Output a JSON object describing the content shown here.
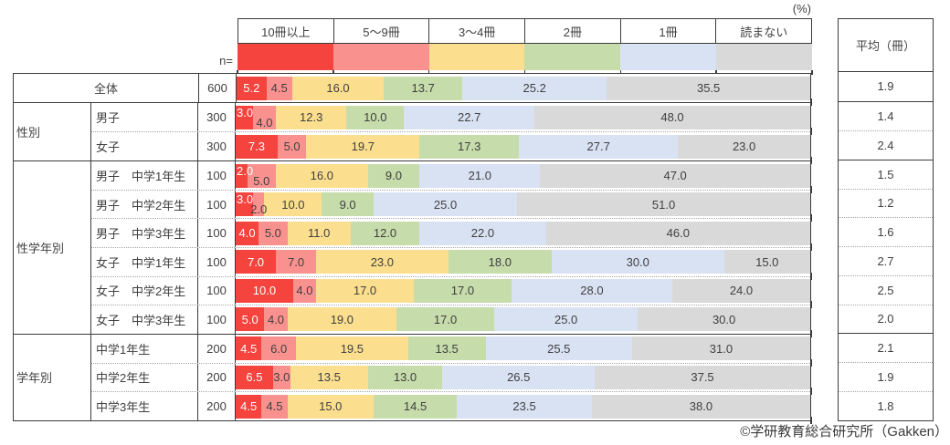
{
  "percent_label": "(%)",
  "n_label": "n=",
  "average_header": "平均（冊）",
  "footer": "©学研教育総合研究所（Gakken）",
  "colors": {
    "border": "#3b3b3b",
    "text": "#404040",
    "dotted_divider": "#a6a6a6"
  },
  "chart_data": {
    "type": "bar",
    "stacked": true,
    "orientation": "horizontal",
    "unit": "%",
    "xlim": [
      0,
      100
    ],
    "series_names": [
      "10冊以上",
      "5〜9冊",
      "3〜4冊",
      "2冊",
      "1冊",
      "読まない"
    ],
    "series_colors": [
      "#f5433e",
      "#f9918f",
      "#fbdf8e",
      "#c6dcab",
      "#d9e2f3",
      "#d9d9d9"
    ],
    "average_label": "平均（冊）",
    "groups": [
      {
        "label": "",
        "rows": [
          {
            "category": "全体",
            "n": 600,
            "values": [
              5.2,
              4.5,
              16.0,
              13.7,
              25.2,
              35.5
            ],
            "average": 1.9
          }
        ]
      },
      {
        "label": "性別",
        "rows": [
          {
            "category": "男子",
            "n": 300,
            "values": [
              3.0,
              4.0,
              12.3,
              10.0,
              22.7,
              48.0
            ],
            "average": 1.4
          },
          {
            "category": "女子",
            "n": 300,
            "values": [
              7.3,
              5.0,
              19.7,
              17.3,
              27.7,
              23.0
            ],
            "average": 2.4
          }
        ]
      },
      {
        "label": "性学年別",
        "rows": [
          {
            "category": "男子　中学1年生",
            "n": 100,
            "values": [
              2.0,
              5.0,
              16.0,
              9.0,
              21.0,
              47.0
            ],
            "average": 1.5
          },
          {
            "category": "男子　中学2年生",
            "n": 100,
            "values": [
              3.0,
              2.0,
              10.0,
              9.0,
              25.0,
              51.0
            ],
            "average": 1.2
          },
          {
            "category": "男子　中学3年生",
            "n": 100,
            "values": [
              4.0,
              5.0,
              11.0,
              12.0,
              22.0,
              46.0
            ],
            "average": 1.6
          },
          {
            "category": "女子　中学1年生",
            "n": 100,
            "values": [
              7.0,
              7.0,
              23.0,
              18.0,
              30.0,
              15.0
            ],
            "average": 2.7
          },
          {
            "category": "女子　中学2年生",
            "n": 100,
            "values": [
              10.0,
              4.0,
              17.0,
              17.0,
              28.0,
              24.0
            ],
            "average": 2.5
          },
          {
            "category": "女子　中学3年生",
            "n": 100,
            "values": [
              5.0,
              4.0,
              19.0,
              17.0,
              25.0,
              30.0
            ],
            "average": 2.0
          }
        ]
      },
      {
        "label": "学年別",
        "rows": [
          {
            "category": "中学1年生",
            "n": 200,
            "values": [
              4.5,
              6.0,
              19.5,
              13.5,
              25.5,
              31.0
            ],
            "average": 2.1
          },
          {
            "category": "中学2年生",
            "n": 200,
            "values": [
              6.5,
              3.0,
              13.5,
              13.0,
              26.5,
              37.5
            ],
            "average": 1.9
          },
          {
            "category": "中学3年生",
            "n": 200,
            "values": [
              4.5,
              4.5,
              15.0,
              14.5,
              23.5,
              38.0
            ],
            "average": 1.8
          }
        ]
      }
    ]
  }
}
